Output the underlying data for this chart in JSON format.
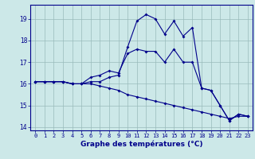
{
  "title": "Graphe des températures (°C)",
  "bg_color": "#cce8e8",
  "line_color": "#00008b",
  "grid_color": "#99bbbb",
  "x_hours": [
    0,
    1,
    2,
    3,
    4,
    5,
    6,
    7,
    8,
    9,
    10,
    11,
    12,
    13,
    14,
    15,
    16,
    17,
    18,
    19,
    20,
    21,
    22,
    23
  ],
  "line1": [
    16.1,
    16.1,
    16.1,
    16.1,
    16.0,
    16.0,
    16.3,
    16.4,
    16.6,
    16.5,
    17.4,
    17.6,
    17.5,
    17.5,
    17.0,
    17.6,
    17.0,
    17.0,
    15.8,
    15.7,
    15.0,
    14.3,
    14.6,
    14.5
  ],
  "line2": [
    16.1,
    16.1,
    16.1,
    16.1,
    16.0,
    16.0,
    16.1,
    16.1,
    16.3,
    16.4,
    17.7,
    18.9,
    19.2,
    19.0,
    18.3,
    18.9,
    18.2,
    18.6,
    15.8,
    15.7,
    15.0,
    14.3,
    14.6,
    14.5
  ],
  "line3": [
    16.1,
    16.1,
    16.1,
    16.1,
    16.0,
    16.0,
    16.0,
    15.9,
    15.8,
    15.7,
    15.5,
    15.4,
    15.3,
    15.2,
    15.1,
    15.0,
    14.9,
    14.8,
    14.7,
    14.6,
    14.5,
    14.4,
    14.5,
    14.5
  ],
  "ylim": [
    13.85,
    19.65
  ],
  "yticks": [
    14,
    15,
    16,
    17,
    18,
    19
  ],
  "xlim": [
    -0.5,
    23.5
  ]
}
